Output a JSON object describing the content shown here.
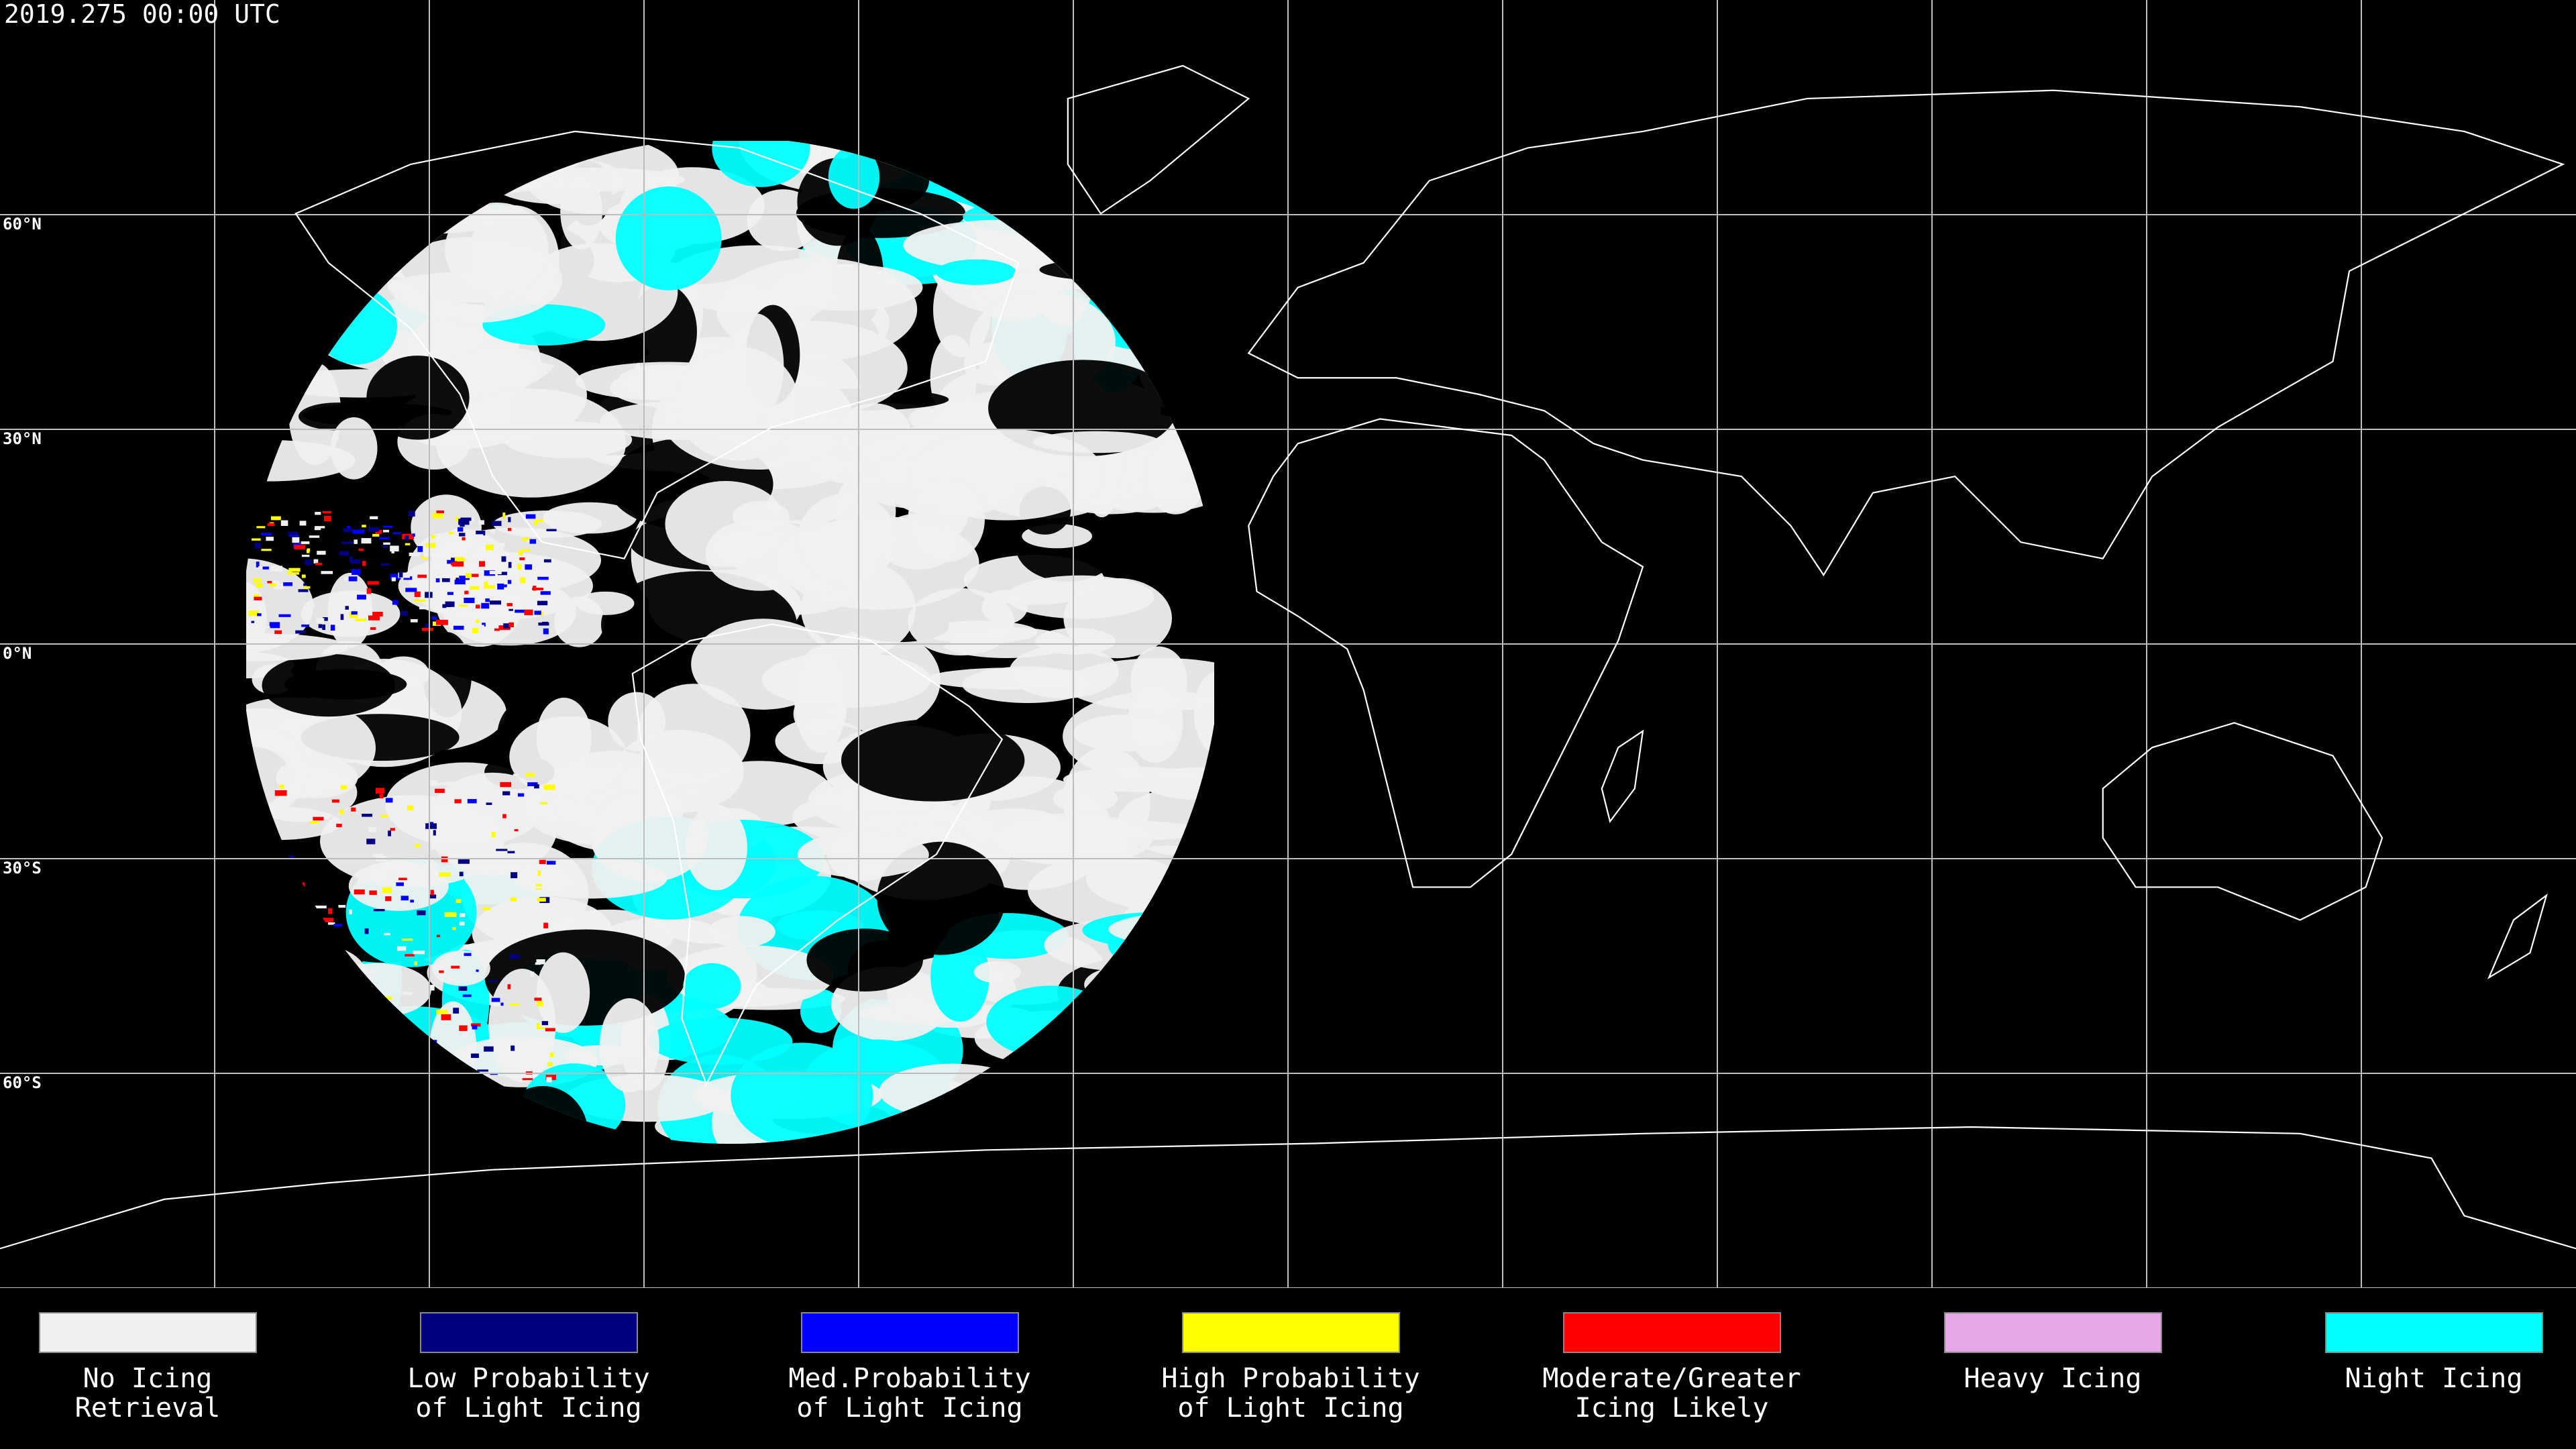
{
  "header": {
    "timestamp": "2019.275 00:00 UTC"
  },
  "grid": {
    "latitude_labels": [
      "60°N",
      "30°N",
      "0°N",
      "30°S",
      "60°S"
    ]
  },
  "legend": {
    "items": [
      {
        "lines": [
          "No Icing",
          "Retrieval"
        ],
        "color": "#f0f0f0"
      },
      {
        "lines": [
          "Low Probability",
          "of Light Icing"
        ],
        "color": "#000080"
      },
      {
        "lines": [
          "Med.Probability",
          "of Light Icing"
        ],
        "color": "#0000ff"
      },
      {
        "lines": [
          "High Probability",
          "of Light Icing"
        ],
        "color": "#ffff00"
      },
      {
        "lines": [
          "Moderate/Greater",
          "Icing Likely"
        ],
        "color": "#ff0000"
      },
      {
        "lines": [
          "Heavy Icing"
        ],
        "color": "#e6a8e6"
      },
      {
        "lines": [
          "Night Icing"
        ],
        "color": "#00ffff"
      }
    ]
  }
}
